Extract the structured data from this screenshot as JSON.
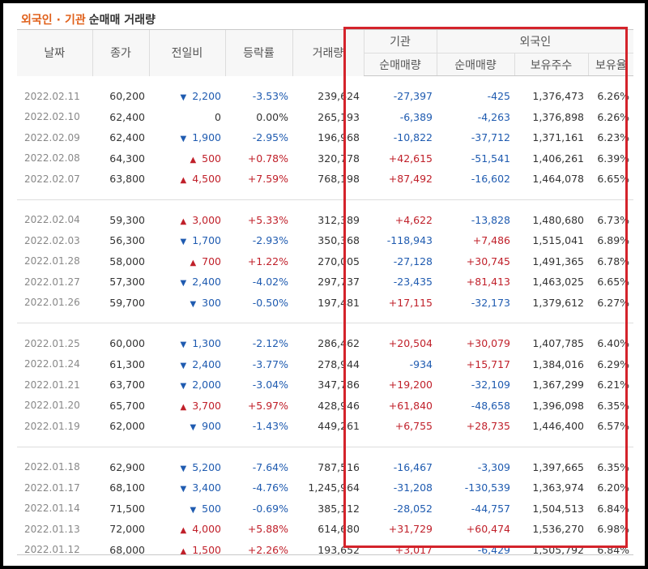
{
  "title": {
    "part1": "외국인",
    "separator": "·",
    "part2": "기관",
    "part3": "순매매 거래량"
  },
  "header": {
    "date": "날짜",
    "close": "종가",
    "change": "전일비",
    "rate": "등락률",
    "volume": "거래량",
    "institution": "기관",
    "foreign": "외국인",
    "inst_net": "순매매량",
    "foreign_net": "순매매량",
    "holdings": "보유주수",
    "ratio": "보유율"
  },
  "colors": {
    "up": "#c0202a",
    "down": "#1f5bb0",
    "highlight_box": "#d4232b",
    "title_accent": "#e0601a"
  },
  "groups": [
    [
      {
        "date": "2022.02.11",
        "close": "60,200",
        "dir": "down",
        "change": "2,200",
        "rate": "-3.53%",
        "volume": "239,624",
        "inst": "-27,397",
        "foreign": "-425",
        "holdings": "1,376,473",
        "ratio": "6.26%"
      },
      {
        "date": "2022.02.10",
        "close": "62,400",
        "dir": "flat",
        "change": "0",
        "rate": "0.00%",
        "volume": "265,193",
        "inst": "-6,389",
        "foreign": "-4,263",
        "holdings": "1,376,898",
        "ratio": "6.26%"
      },
      {
        "date": "2022.02.09",
        "close": "62,400",
        "dir": "down",
        "change": "1,900",
        "rate": "-2.95%",
        "volume": "196,968",
        "inst": "-10,822",
        "foreign": "-37,712",
        "holdings": "1,371,161",
        "ratio": "6.23%"
      },
      {
        "date": "2022.02.08",
        "close": "64,300",
        "dir": "up",
        "change": "500",
        "rate": "+0.78%",
        "volume": "320,778",
        "inst": "+42,615",
        "foreign": "-51,541",
        "holdings": "1,406,261",
        "ratio": "6.39%"
      },
      {
        "date": "2022.02.07",
        "close": "63,800",
        "dir": "up",
        "change": "4,500",
        "rate": "+7.59%",
        "volume": "768,198",
        "inst": "+87,492",
        "foreign": "-16,602",
        "holdings": "1,464,078",
        "ratio": "6.65%"
      }
    ],
    [
      {
        "date": "2022.02.04",
        "close": "59,300",
        "dir": "up",
        "change": "3,000",
        "rate": "+5.33%",
        "volume": "312,389",
        "inst": "+4,622",
        "foreign": "-13,828",
        "holdings": "1,480,680",
        "ratio": "6.73%"
      },
      {
        "date": "2022.02.03",
        "close": "56,300",
        "dir": "down",
        "change": "1,700",
        "rate": "-2.93%",
        "volume": "350,368",
        "inst": "-118,943",
        "foreign": "+7,486",
        "holdings": "1,515,041",
        "ratio": "6.89%"
      },
      {
        "date": "2022.01.28",
        "close": "58,000",
        "dir": "up",
        "change": "700",
        "rate": "+1.22%",
        "volume": "270,005",
        "inst": "-27,128",
        "foreign": "+30,745",
        "holdings": "1,491,365",
        "ratio": "6.78%"
      },
      {
        "date": "2022.01.27",
        "close": "57,300",
        "dir": "down",
        "change": "2,400",
        "rate": "-4.02%",
        "volume": "297,737",
        "inst": "-23,435",
        "foreign": "+81,413",
        "holdings": "1,463,025",
        "ratio": "6.65%"
      },
      {
        "date": "2022.01.26",
        "close": "59,700",
        "dir": "down",
        "change": "300",
        "rate": "-0.50%",
        "volume": "197,481",
        "inst": "+17,115",
        "foreign": "-32,173",
        "holdings": "1,379,612",
        "ratio": "6.27%"
      }
    ],
    [
      {
        "date": "2022.01.25",
        "close": "60,000",
        "dir": "down",
        "change": "1,300",
        "rate": "-2.12%",
        "volume": "286,462",
        "inst": "+20,504",
        "foreign": "+30,079",
        "holdings": "1,407,785",
        "ratio": "6.40%"
      },
      {
        "date": "2022.01.24",
        "close": "61,300",
        "dir": "down",
        "change": "2,400",
        "rate": "-3.77%",
        "volume": "278,944",
        "inst": "-934",
        "foreign": "+15,717",
        "holdings": "1,384,016",
        "ratio": "6.29%"
      },
      {
        "date": "2022.01.21",
        "close": "63,700",
        "dir": "down",
        "change": "2,000",
        "rate": "-3.04%",
        "volume": "347,786",
        "inst": "+19,200",
        "foreign": "-32,109",
        "holdings": "1,367,299",
        "ratio": "6.21%"
      },
      {
        "date": "2022.01.20",
        "close": "65,700",
        "dir": "up",
        "change": "3,700",
        "rate": "+5.97%",
        "volume": "428,946",
        "inst": "+61,840",
        "foreign": "-48,658",
        "holdings": "1,396,098",
        "ratio": "6.35%"
      },
      {
        "date": "2022.01.19",
        "close": "62,000",
        "dir": "down",
        "change": "900",
        "rate": "-1.43%",
        "volume": "449,261",
        "inst": "+6,755",
        "foreign": "+28,735",
        "holdings": "1,446,400",
        "ratio": "6.57%"
      }
    ],
    [
      {
        "date": "2022.01.18",
        "close": "62,900",
        "dir": "down",
        "change": "5,200",
        "rate": "-7.64%",
        "volume": "787,516",
        "inst": "-16,467",
        "foreign": "-3,309",
        "holdings": "1,397,665",
        "ratio": "6.35%"
      },
      {
        "date": "2022.01.17",
        "close": "68,100",
        "dir": "down",
        "change": "3,400",
        "rate": "-4.76%",
        "volume": "1,245,964",
        "inst": "-31,208",
        "foreign": "-130,539",
        "holdings": "1,363,974",
        "ratio": "6.20%"
      },
      {
        "date": "2022.01.14",
        "close": "71,500",
        "dir": "down",
        "change": "500",
        "rate": "-0.69%",
        "volume": "385,112",
        "inst": "-28,052",
        "foreign": "-44,757",
        "holdings": "1,504,513",
        "ratio": "6.84%"
      },
      {
        "date": "2022.01.13",
        "close": "72,000",
        "dir": "up",
        "change": "4,000",
        "rate": "+5.88%",
        "volume": "614,680",
        "inst": "+31,729",
        "foreign": "+60,474",
        "holdings": "1,536,270",
        "ratio": "6.98%"
      },
      {
        "date": "2022.01.12",
        "close": "68,000",
        "dir": "up",
        "change": "1,500",
        "rate": "+2.26%",
        "volume": "193,652",
        "inst": "+3,017",
        "foreign": "-6,429",
        "holdings": "1,505,792",
        "ratio": "6.84%"
      }
    ]
  ]
}
